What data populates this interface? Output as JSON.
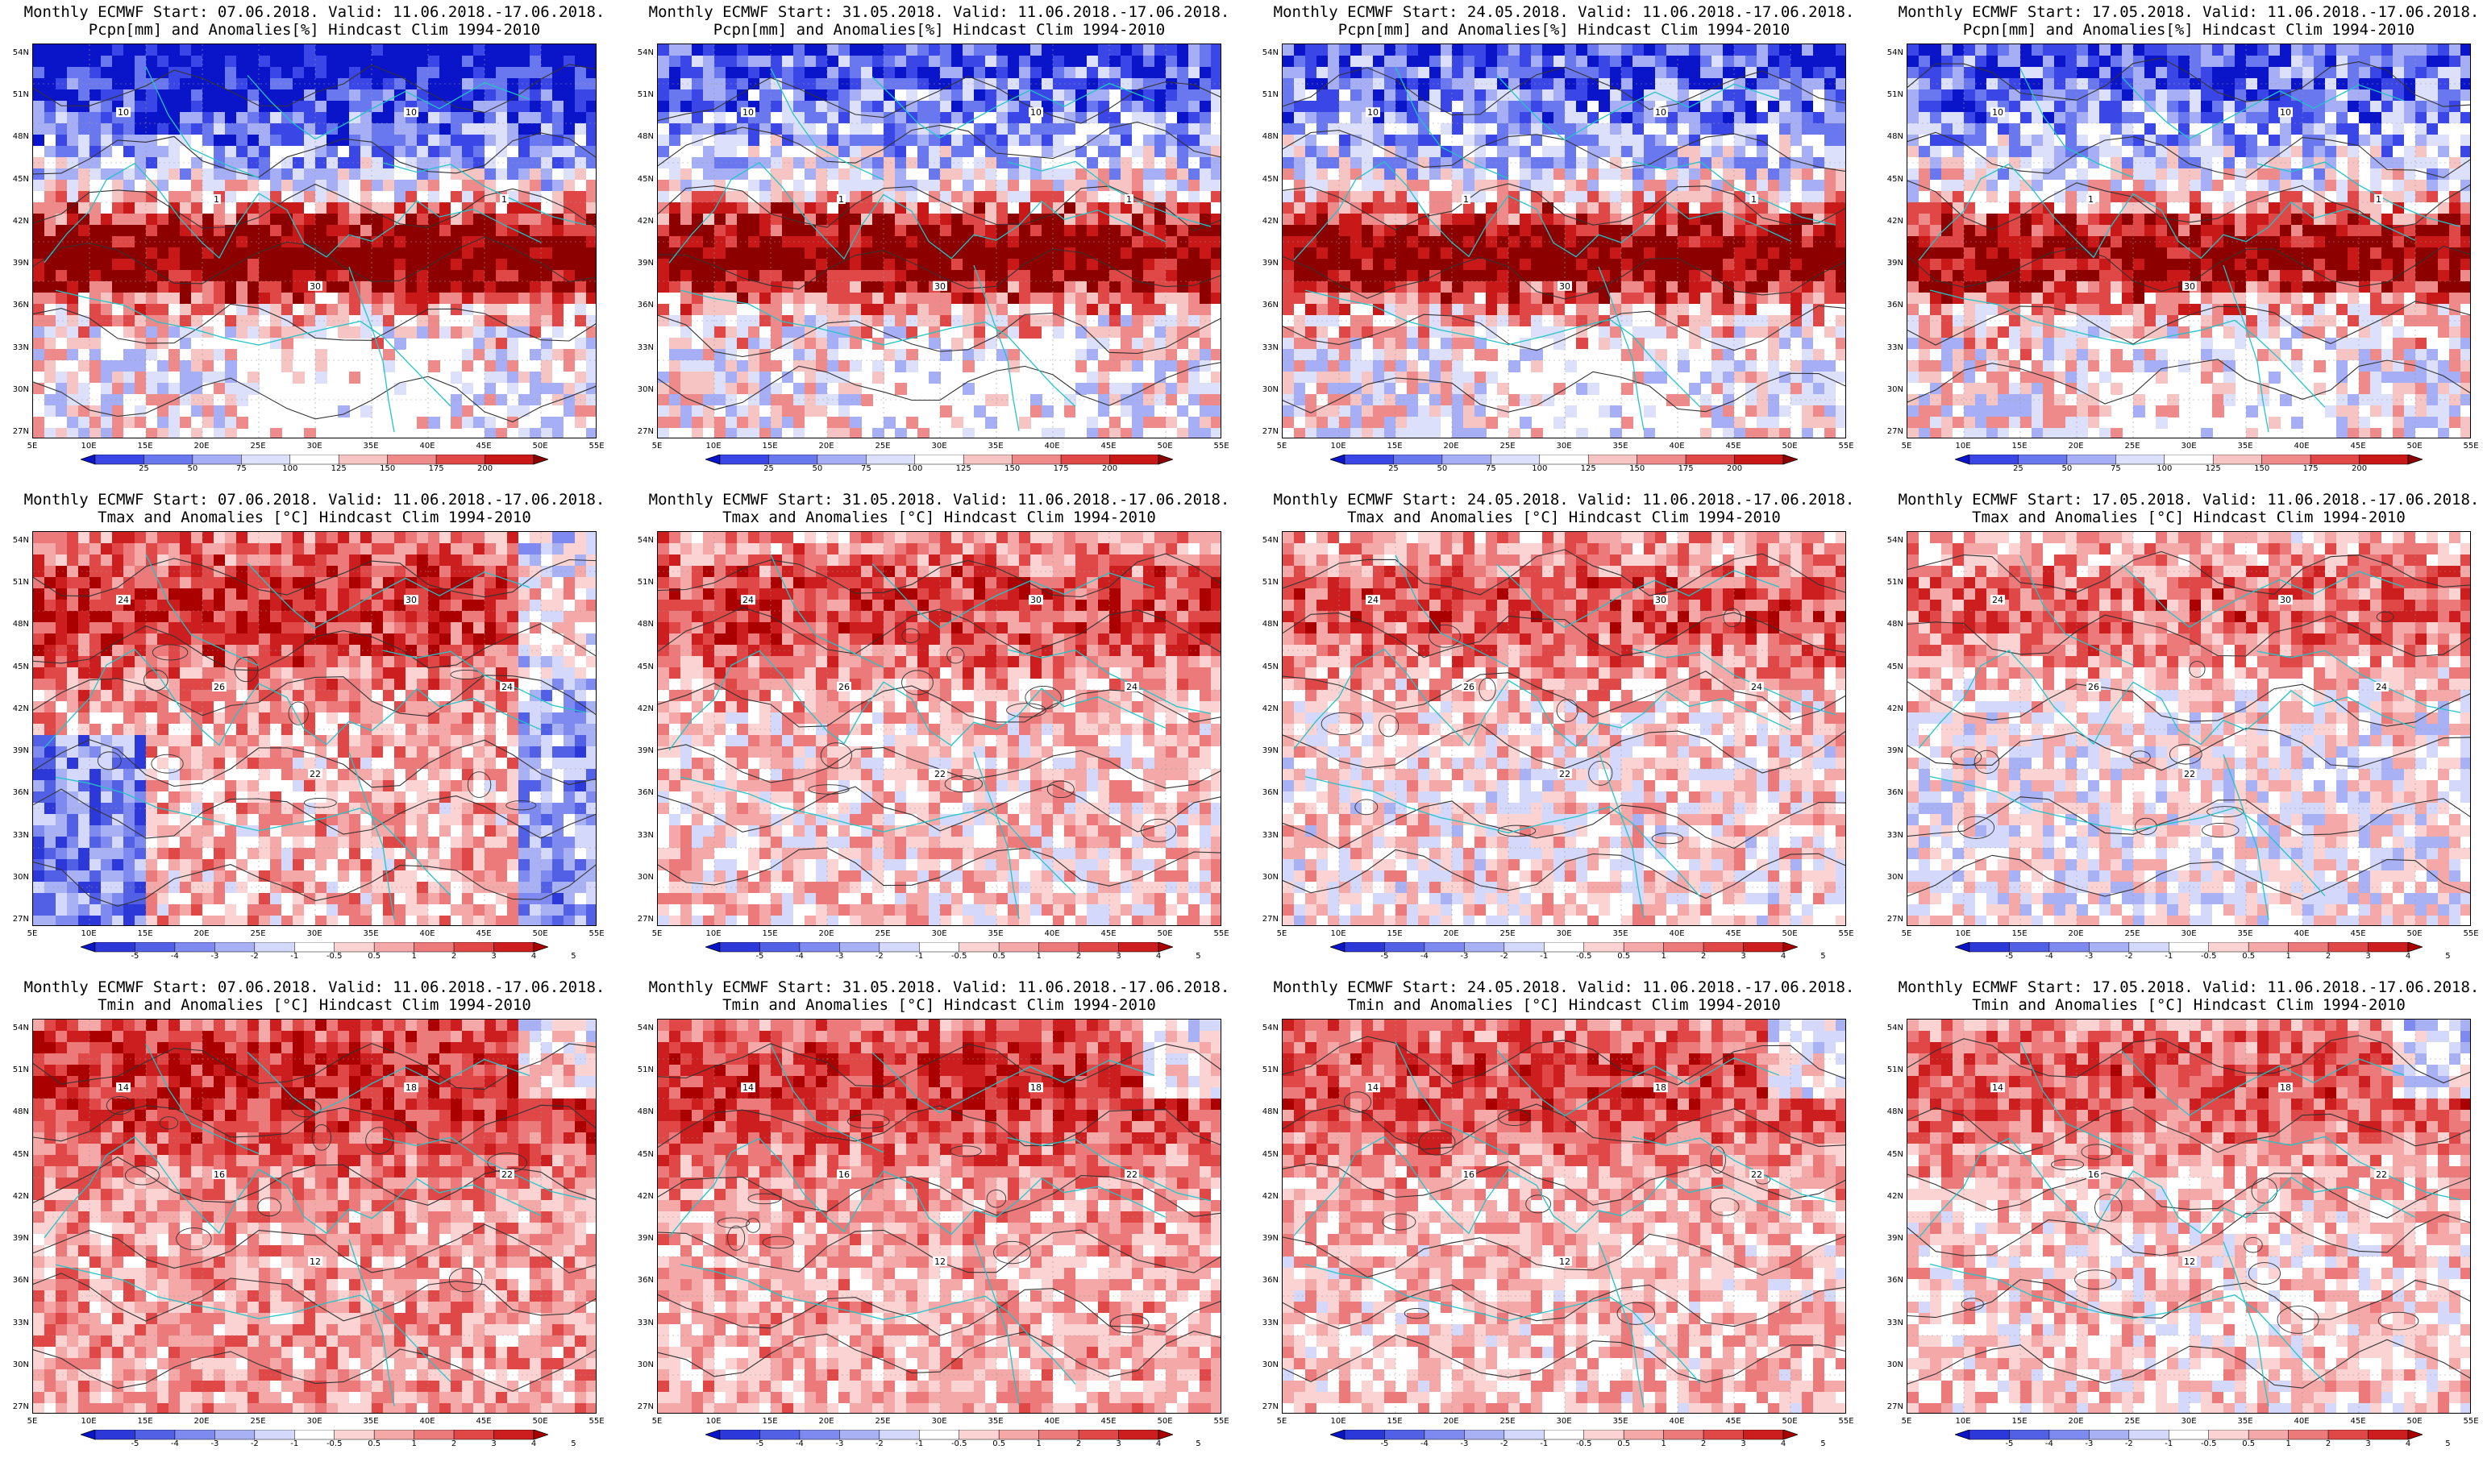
{
  "rows": [
    {
      "variable": "pcpn",
      "line2": "Pcpn[mm] and Anomalies[%] Hindcast Clim 1994-2010",
      "colorbar_labels": [
        "25",
        "50",
        "75",
        "100",
        "125",
        "150",
        "175",
        "200"
      ],
      "colorbar_colors": [
        "#0a14c8",
        "#3a46e6",
        "#6a78f0",
        "#a6aef6",
        "#dde0fb",
        "#ffffff",
        "#f7c4c4",
        "#ee8a8a",
        "#e04848",
        "#c81818",
        "#8c0000"
      ],
      "isoline_labels": [
        "10",
        "1",
        "30",
        "10",
        "1"
      ]
    },
    {
      "variable": "tmax",
      "line2": "Tmax and Anomalies [°C] Hindcast Clim 1994-2010",
      "colorbar_labels": [
        "-5",
        "-4",
        "-3",
        "-2",
        "-1",
        "-0.5",
        "0.5",
        "1",
        "2",
        "3",
        "4",
        "5"
      ],
      "colorbar_colors": [
        "#0a14c8",
        "#2c38d8",
        "#5260e6",
        "#7e8af0",
        "#a9b1f5",
        "#d4d8fa",
        "#ffffff",
        "#fbd3d3",
        "#f4a8a8",
        "#ec7a7a",
        "#e04848",
        "#cc1e1e",
        "#aa0000"
      ],
      "isoline_labels": [
        "24",
        "26",
        "22",
        "30",
        "24"
      ]
    },
    {
      "variable": "tmin",
      "line2": "Tmin and Anomalies [°C] Hindcast Clim 1994-2010",
      "colorbar_labels": [
        "-5",
        "-4",
        "-3",
        "-2",
        "-1",
        "-0.5",
        "0.5",
        "1",
        "2",
        "3",
        "4",
        "5"
      ],
      "colorbar_colors": [
        "#0a14c8",
        "#2c38d8",
        "#5260e6",
        "#7e8af0",
        "#a9b1f5",
        "#d4d8fa",
        "#ffffff",
        "#fbd3d3",
        "#f4a8a8",
        "#ec7a7a",
        "#e04848",
        "#cc1e1e",
        "#aa0000"
      ],
      "isoline_labels": [
        "14",
        "16",
        "12",
        "18",
        "22"
      ]
    }
  ],
  "columns": [
    {
      "line1": "Monthly ECMWF Start: 07.06.2018. Valid: 11.06.2018.-17.06.2018."
    },
    {
      "line1": "Monthly ECMWF Start: 31.05.2018. Valid: 11.06.2018.-17.06.2018."
    },
    {
      "line1": "Monthly ECMWF Start: 24.05.2018. Valid: 11.06.2018.-17.06.2018."
    },
    {
      "line1": "Monthly ECMWF Start: 17.05.2018. Valid: 11.06.2018.-17.06.2018."
    }
  ],
  "axes": {
    "lat_labels": [
      "54N",
      "51N",
      "48N",
      "45N",
      "42N",
      "39N",
      "36N",
      "33N",
      "30N",
      "27N"
    ],
    "lon_labels": [
      "5E",
      "10E",
      "15E",
      "20E",
      "25E",
      "30E",
      "35E",
      "40E",
      "45E",
      "50E",
      "55E"
    ]
  },
  "colors": {
    "coast": "#22c4c8",
    "contour": "#333333"
  }
}
